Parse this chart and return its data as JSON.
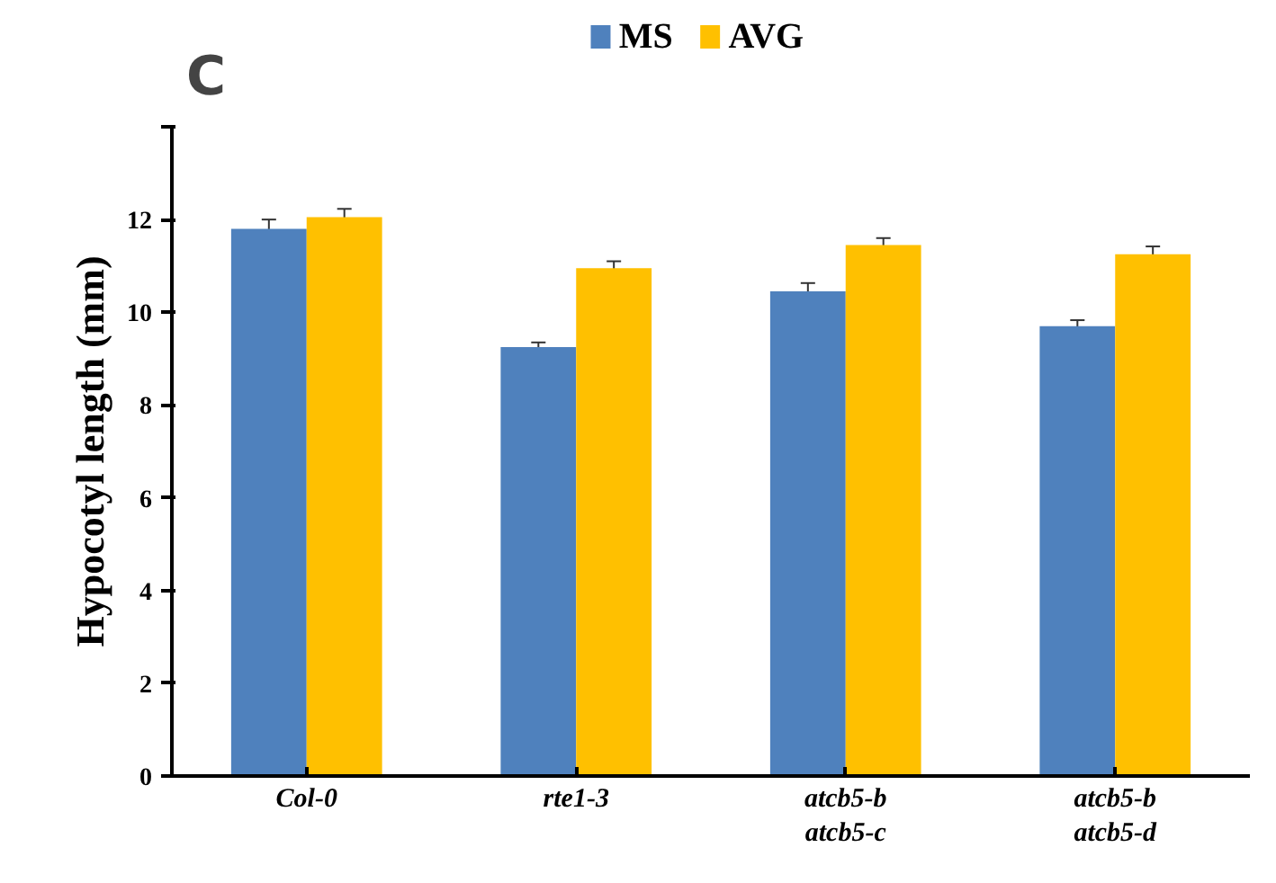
{
  "chart_data": {
    "type": "bar",
    "ylabel": "Hypocotyl length (mm)",
    "annotations": [
      "C"
    ],
    "categories": [
      "Col-0",
      "rte1-3",
      "atcb5-b\natcb5-c",
      "atcb5-b\natcb5-d"
    ],
    "series": [
      {
        "name": "MS",
        "color": "#4f81bd",
        "values": [
          11.8,
          9.25,
          10.45,
          9.7
        ],
        "errors": [
          0.2,
          0.1,
          0.18,
          0.13
        ]
      },
      {
        "name": "AVG",
        "color": "#ffc000",
        "values": [
          12.05,
          10.95,
          11.45,
          11.25
        ],
        "errors": [
          0.18,
          0.15,
          0.15,
          0.17
        ]
      }
    ],
    "ylim": [
      0,
      14
    ],
    "yticks": [
      0,
      2,
      4,
      6,
      8,
      10,
      12,
      {
        "value": 14,
        "label": null
      }
    ],
    "grid": false,
    "legend": "top"
  }
}
